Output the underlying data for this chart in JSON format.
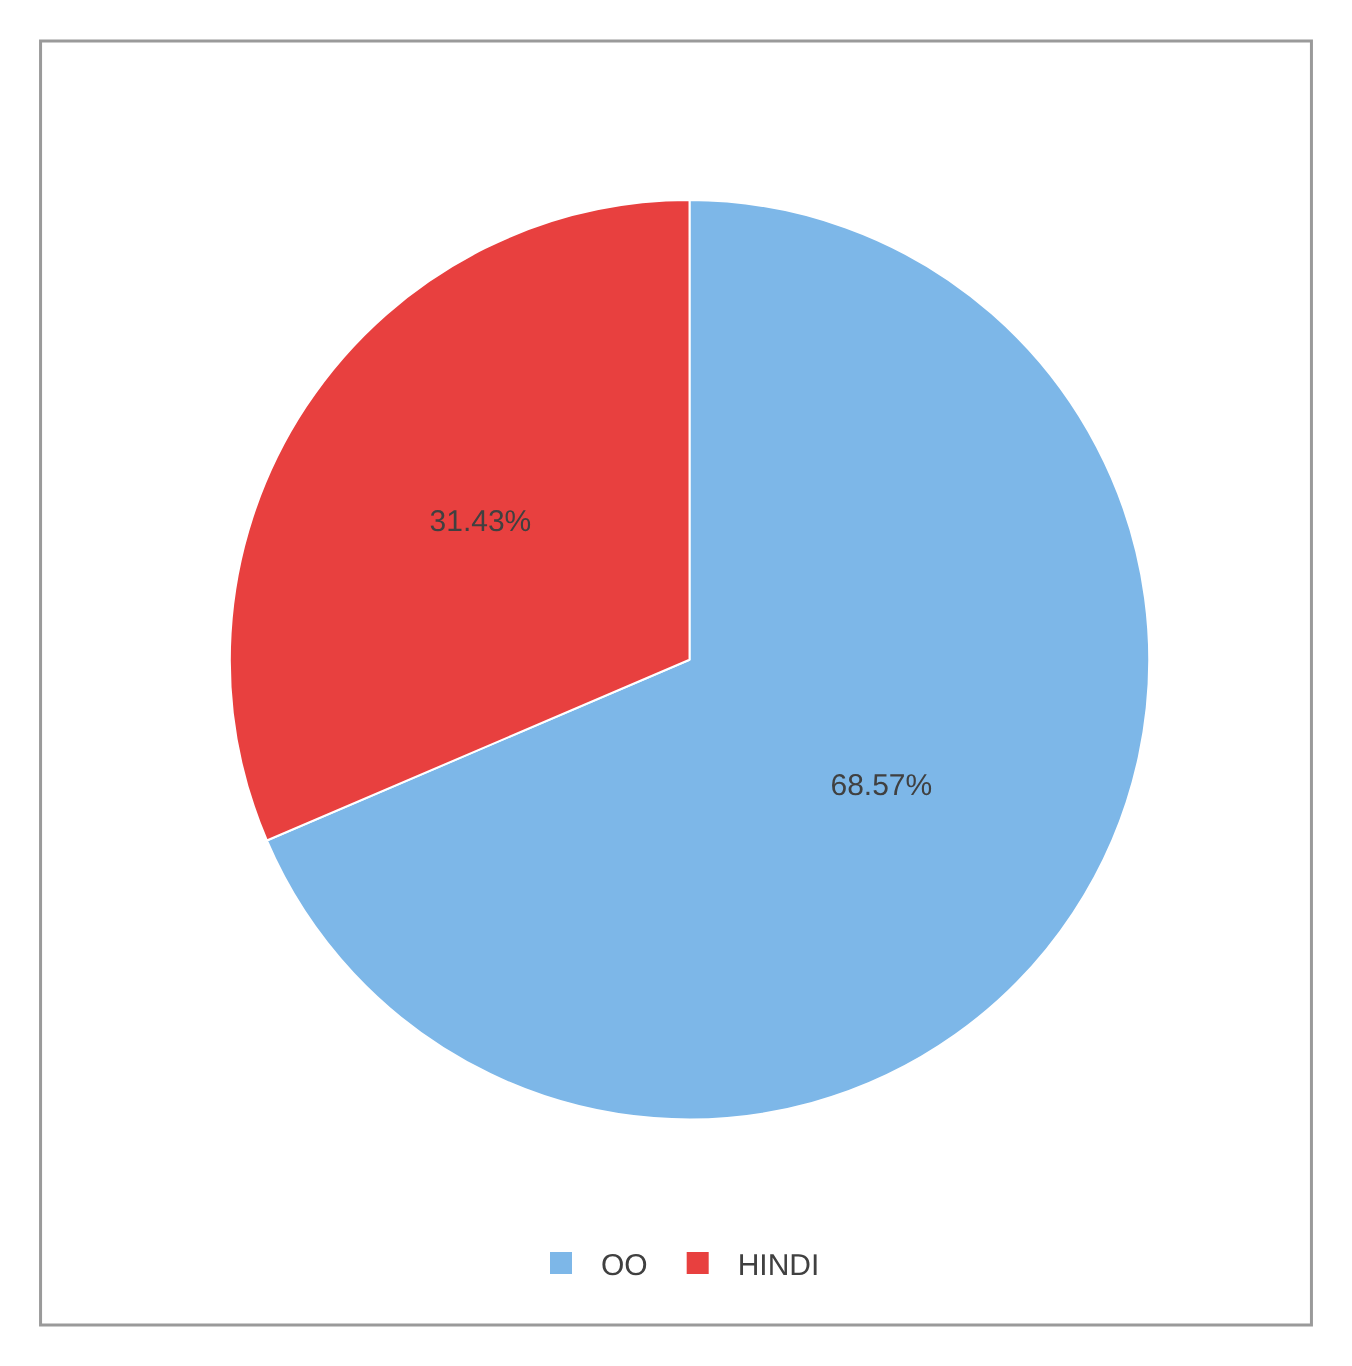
{
  "chart_data": {
    "type": "pie",
    "categories": [
      "OO",
      "HINDI"
    ],
    "values": [
      68.57,
      31.43
    ],
    "colors": [
      "#7db7e8",
      "#e8403f"
    ],
    "value_labels": [
      "68.57%",
      "31.43%"
    ],
    "legend": "bottom"
  }
}
